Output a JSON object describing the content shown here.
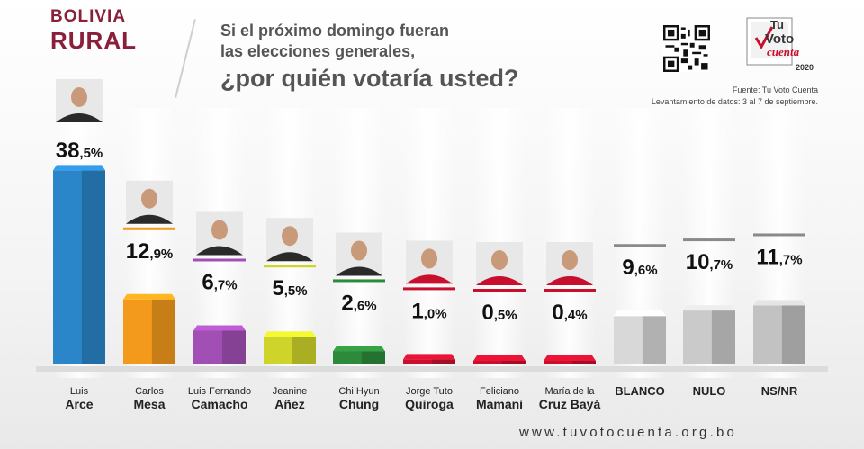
{
  "header": {
    "region_line1": "BOLIVIA",
    "region_line2": "RURAL",
    "question_line1": "Si el próximo domingo fueran",
    "question_line2": "las elecciones generales,",
    "question_line3": "¿por quién votaría usted?",
    "source": "Fuente: Tu Voto Cuenta",
    "fieldwork": "Levantamiento de datos: 3 al 7 de septiembre."
  },
  "logo": {
    "line1": "Tu",
    "line2": "Voto",
    "line3": "cuenta",
    "year": "2020"
  },
  "footer": {
    "url": "www.tuvotocuenta.org.bo"
  },
  "colors": {
    "brand": "#8a1f3a",
    "arce": "#2a86c8",
    "mesa": "#f39a1c",
    "camacho": "#a24fb5",
    "anez": "#cfd42a",
    "chung": "#2d8a3b",
    "quiroga": "#c8102e",
    "mamani": "#c8102e",
    "baya": "#c8102e",
    "blanco": "#d8d8d8",
    "nulo": "#cacaca",
    "nsnr": "#c2c2c2"
  },
  "chart_data": {
    "type": "bar",
    "title": "¿por quién votaría usted?",
    "unit": "%",
    "categories": [
      "Luis Arce",
      "Carlos Mesa",
      "Luis Fernando Camacho",
      "Jeanine Añez",
      "Chi Hyun Chung",
      "Jorge Tuto Quiroga",
      "Feliciano Mamani",
      "María de la Cruz Bayá",
      "BLANCO",
      "NULO",
      "NS/NR"
    ],
    "values": [
      38.5,
      12.9,
      6.7,
      5.5,
      2.6,
      1.0,
      0.5,
      0.4,
      9.6,
      10.7,
      11.7
    ],
    "labels": [
      {
        "int": "38",
        "dec": ",5%"
      },
      {
        "int": "12",
        "dec": ",9%"
      },
      {
        "int": "6",
        "dec": ",7%"
      },
      {
        "int": "5",
        "dec": ",5%"
      },
      {
        "int": "2",
        "dec": ",6%"
      },
      {
        "int": "1",
        "dec": ",0%"
      },
      {
        "int": "0",
        "dec": ",5%"
      },
      {
        "int": "0",
        "dec": ",4%"
      },
      {
        "int": "9",
        "dec": ",6%"
      },
      {
        "int": "10",
        "dec": ",7%"
      },
      {
        "int": "11",
        "dec": ",7%"
      }
    ],
    "names": [
      {
        "first": "Luis",
        "last": "Arce"
      },
      {
        "first": "Carlos",
        "last": "Mesa"
      },
      {
        "first": "Luis Fernando",
        "last": "Camacho"
      },
      {
        "first": "Jeanine",
        "last": "Añez"
      },
      {
        "first": "Chi Hyun",
        "last": "Chung"
      },
      {
        "first": "Jorge Tuto",
        "last": "Quiroga"
      },
      {
        "first": "Feliciano",
        "last": "Mamani"
      },
      {
        "first": "María de la",
        "last": "Cruz Bayá"
      },
      {
        "first": "",
        "last": "BLANCO"
      },
      {
        "first": "",
        "last": "NULO"
      },
      {
        "first": "",
        "last": "NS/NR"
      }
    ],
    "bar_colors": [
      "#2a86c8",
      "#f39a1c",
      "#a24fb5",
      "#cfd42a",
      "#2d8a3b",
      "#c8102e",
      "#c8102e",
      "#c8102e",
      "#d8d8d8",
      "#cacaca",
      "#c2c2c2"
    ],
    "ylim": [
      0,
      40
    ]
  }
}
